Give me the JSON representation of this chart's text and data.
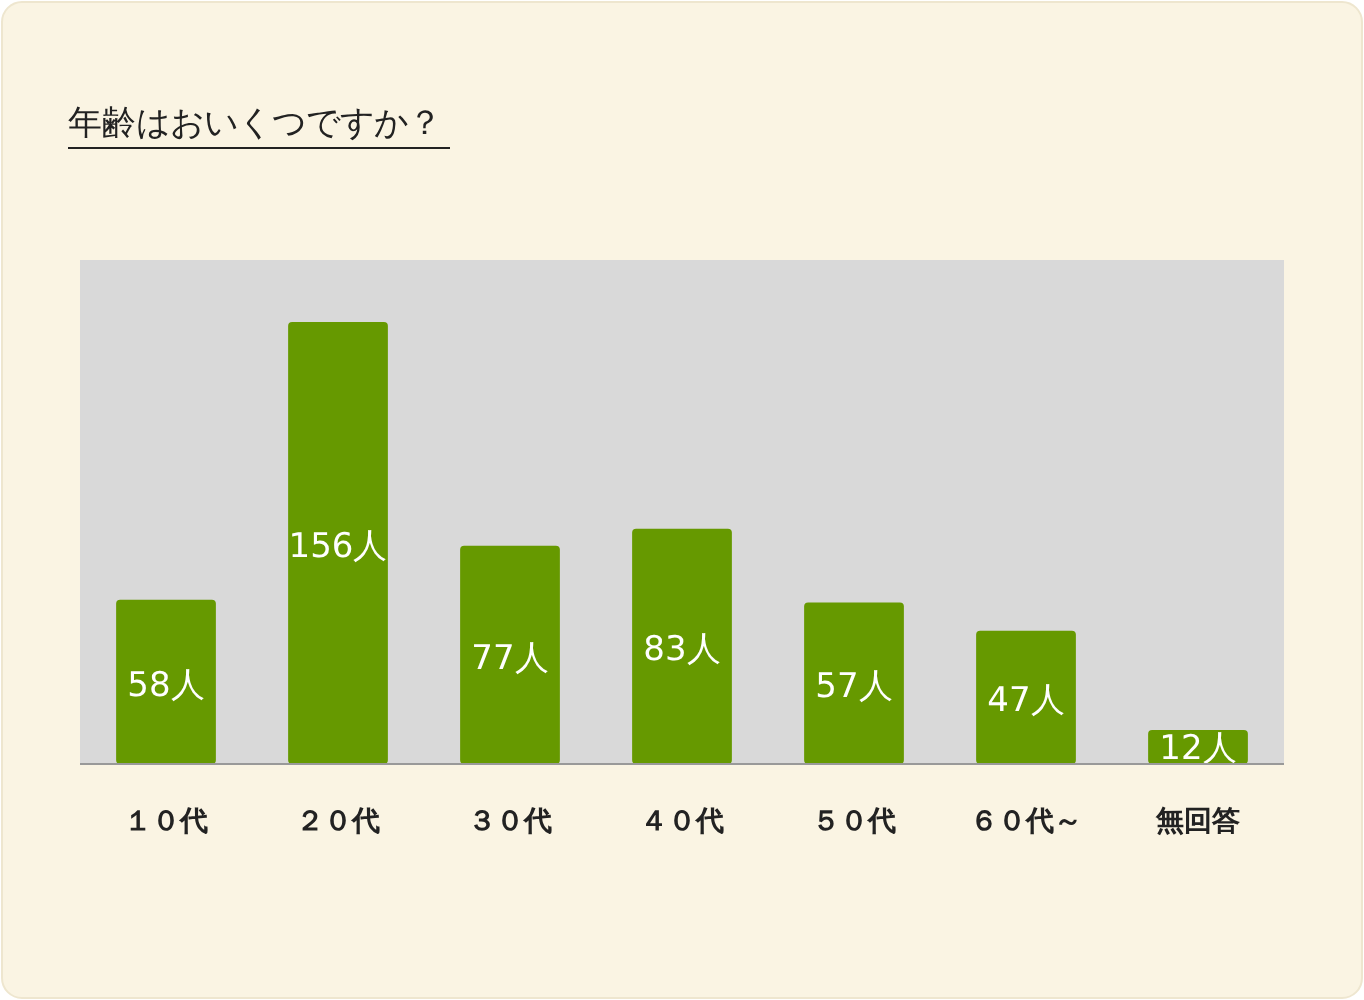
{
  "chart_data": {
    "type": "bar",
    "title": "年齢はおいくつですか？",
    "categories": [
      "１０代",
      "２０代",
      "３０代",
      "４０代",
      "５０代",
      "６０代～",
      "無回答"
    ],
    "values": [
      58,
      156,
      77,
      83,
      57,
      47,
      12
    ],
    "value_labels": [
      "58人",
      "156人",
      "77人",
      "83人",
      "57人",
      "47人",
      "12人"
    ],
    "color": "#669900"
  }
}
